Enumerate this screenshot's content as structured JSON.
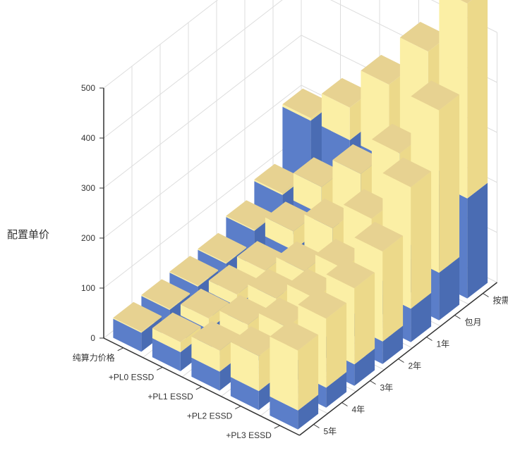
{
  "chart_data": {
    "type": "bar3d",
    "zlabel": "配置单价",
    "zlim": [
      0,
      500
    ],
    "z_ticks": [
      "0",
      "100",
      "200",
      "300",
      "400",
      "500"
    ],
    "x_categories": [
      "纯算力价格",
      "+PL0 ESSD",
      "+PL1 ESSD",
      "+PL2 ESSD",
      "+PL3 ESSD"
    ],
    "y_categories": [
      "5年",
      "4年",
      "3年",
      "2年",
      "1年",
      "包月",
      "按需"
    ],
    "grid": true,
    "base_series_color": "#5b7ec9",
    "stack_series_color": "#fbefa5",
    "top_face_color": "#e7d291",
    "base_values": [
      [
        38,
        40,
        43,
        45,
        67,
        95,
        200
      ],
      [
        38,
        40,
        43,
        45,
        67,
        95,
        200
      ],
      [
        38,
        40,
        43,
        45,
        67,
        95,
        200
      ],
      [
        38,
        40,
        43,
        45,
        67,
        95,
        200
      ],
      [
        38,
        40,
        43,
        45,
        67,
        95,
        200
      ]
    ],
    "total_values": [
      [
        40,
        42,
        45,
        47,
        69,
        98,
        205
      ],
      [
        58,
        62,
        66,
        70,
        105,
        150,
        265
      ],
      [
        80,
        88,
        97,
        108,
        150,
        215,
        350
      ],
      [
        108,
        122,
        136,
        152,
        208,
        295,
        455
      ],
      [
        158,
        178,
        195,
        225,
        310,
        420,
        590
      ]
    ]
  }
}
